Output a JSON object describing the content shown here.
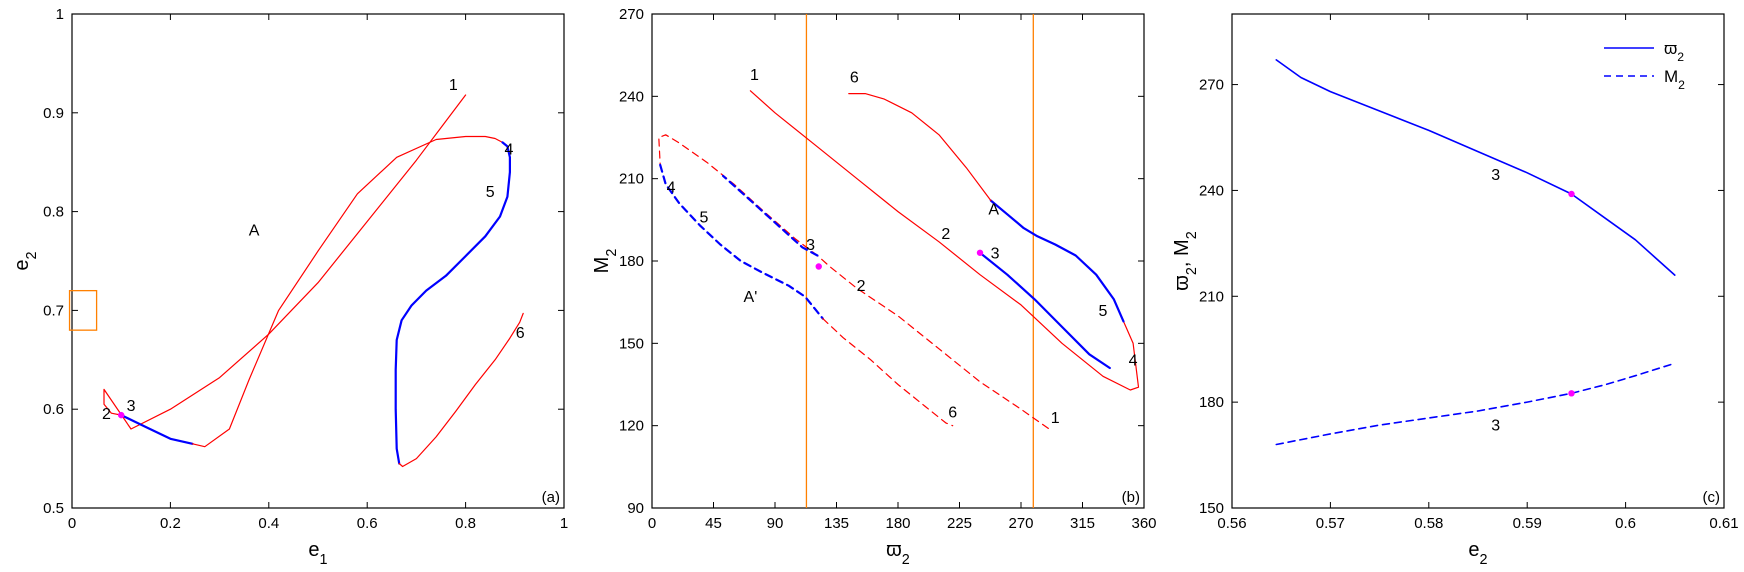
{
  "colors": {
    "red": "#ff0000",
    "blue": "#0000ff",
    "magenta": "#ff00ff",
    "orange": "#ff8000",
    "axis": "#000000"
  },
  "chart_data": [
    {
      "type": "line",
      "panel": "(a)",
      "xlabel": "e1",
      "ylabel": "e2",
      "xlim": [
        0,
        1
      ],
      "ylim": [
        0.5,
        1
      ],
      "xticks": [
        "0",
        "0.2",
        "0.4",
        "0.6",
        "0.8",
        "1"
      ],
      "xtick_values": [
        0,
        0.2,
        0.4,
        0.6,
        0.8,
        1
      ],
      "yticks": [
        "0.5",
        "0.6",
        "0.7",
        "0.8",
        "0.9",
        "1"
      ],
      "ytick_values": [
        0.5,
        0.6,
        0.7,
        0.8,
        0.9,
        1
      ],
      "series": [
        {
          "color": "red",
          "style": "solid",
          "width": 1.2,
          "points": [
            [
              0.8,
              0.918
            ],
            [
              0.7,
              0.852
            ],
            [
              0.6,
              0.79
            ],
            [
              0.5,
              0.728
            ],
            [
              0.4,
              0.676
            ],
            [
              0.3,
              0.632
            ],
            [
              0.2,
              0.6
            ],
            [
              0.12,
              0.58
            ],
            [
              0.065,
              0.62
            ],
            [
              0.065,
              0.605
            ],
            [
              0.08,
              0.596
            ],
            [
              0.1,
              0.594
            ]
          ]
        },
        {
          "color": "blue",
          "style": "solid",
          "width": 2.2,
          "points": [
            [
              0.1,
              0.594
            ],
            [
              0.15,
              0.582
            ],
            [
              0.2,
              0.57
            ],
            [
              0.245,
              0.565
            ]
          ]
        },
        {
          "color": "red",
          "style": "solid",
          "width": 1.2,
          "points": [
            [
              0.245,
              0.565
            ],
            [
              0.27,
              0.562
            ],
            [
              0.32,
              0.58
            ],
            [
              0.36,
              0.63
            ],
            [
              0.42,
              0.7
            ],
            [
              0.5,
              0.76
            ],
            [
              0.58,
              0.818
            ],
            [
              0.66,
              0.855
            ],
            [
              0.74,
              0.873
            ],
            [
              0.8,
              0.876
            ],
            [
              0.84,
              0.876
            ],
            [
              0.86,
              0.874
            ],
            [
              0.875,
              0.87
            ]
          ]
        },
        {
          "color": "blue",
          "style": "solid",
          "width": 2.2,
          "points": [
            [
              0.875,
              0.87
            ],
            [
              0.885,
              0.866
            ],
            [
              0.89,
              0.855
            ],
            [
              0.89,
              0.84
            ],
            [
              0.885,
              0.815
            ],
            [
              0.87,
              0.795
            ],
            [
              0.84,
              0.775
            ],
            [
              0.8,
              0.755
            ],
            [
              0.76,
              0.735
            ],
            [
              0.72,
              0.72
            ],
            [
              0.69,
              0.705
            ],
            [
              0.67,
              0.69
            ],
            [
              0.66,
              0.67
            ],
            [
              0.658,
              0.64
            ],
            [
              0.658,
              0.6
            ],
            [
              0.66,
              0.56
            ],
            [
              0.665,
              0.545
            ]
          ]
        },
        {
          "color": "red",
          "style": "solid",
          "width": 1.2,
          "points": [
            [
              0.665,
              0.545
            ],
            [
              0.672,
              0.542
            ],
            [
              0.7,
              0.55
            ],
            [
              0.74,
              0.572
            ],
            [
              0.78,
              0.598
            ],
            [
              0.82,
              0.625
            ],
            [
              0.86,
              0.65
            ],
            [
              0.89,
              0.672
            ],
            [
              0.91,
              0.688
            ],
            [
              0.917,
              0.697
            ]
          ]
        }
      ],
      "markers": [
        {
          "x": 0.1,
          "y": 0.594,
          "color": "magenta"
        }
      ],
      "annotations": [
        {
          "text": "1",
          "x": 0.775,
          "y": 0.923
        },
        {
          "text": "A",
          "x": 0.37,
          "y": 0.776
        },
        {
          "text": "4",
          "x": 0.888,
          "y": 0.858
        },
        {
          "text": "5",
          "x": 0.85,
          "y": 0.815
        },
        {
          "text": "6",
          "x": 0.911,
          "y": 0.672
        },
        {
          "text": "2",
          "x": 0.07,
          "y": 0.59
        },
        {
          "text": "3",
          "x": 0.12,
          "y": 0.598
        }
      ],
      "rects": [
        {
          "x0": -0.005,
          "x1": 0.05,
          "y0": 0.68,
          "y1": 0.72,
          "color": "orange"
        }
      ],
      "vlines": []
    },
    {
      "type": "line",
      "panel": "(b)",
      "xlabel": "ϖ2",
      "ylabel": "M2",
      "xlim": [
        0,
        360
      ],
      "ylim": [
        90,
        270
      ],
      "xticks": [
        "0",
        "45",
        "90",
        "135",
        "180",
        "225",
        "270",
        "315",
        "360"
      ],
      "xtick_values": [
        0,
        45,
        90,
        135,
        180,
        225,
        270,
        315,
        360
      ],
      "yticks": [
        "90",
        "120",
        "150",
        "180",
        "210",
        "240",
        "270"
      ],
      "ytick_values": [
        90,
        120,
        150,
        180,
        210,
        240,
        270
      ],
      "series": [
        {
          "color": "red",
          "style": "solid",
          "width": 1.2,
          "points": [
            [
              72,
              242
            ],
            [
              90,
              234
            ],
            [
              120,
              222
            ],
            [
              150,
              210
            ],
            [
              180,
              198
            ],
            [
              210,
              187
            ],
            [
              240,
              175
            ],
            [
              270,
              164
            ],
            [
              300,
              150
            ],
            [
              330,
              138
            ],
            [
              350,
              133
            ],
            [
              356,
              134
            ],
            [
              352,
              150
            ],
            [
              345,
              158
            ]
          ]
        },
        {
          "color": "blue",
          "style": "solid",
          "width": 2.2,
          "points": [
            [
              345,
              158
            ],
            [
              338,
              166
            ],
            [
              325,
              175
            ],
            [
              310,
              182
            ],
            [
              295,
              186
            ],
            [
              282,
              189
            ],
            [
              272,
              192
            ],
            [
              260,
              197
            ],
            [
              248,
              202
            ]
          ]
        },
        {
          "color": "red",
          "style": "solid",
          "width": 1.2,
          "points": [
            [
              248,
              202
            ],
            [
              230,
              214
            ],
            [
              210,
              226
            ],
            [
              190,
              234
            ],
            [
              170,
              239
            ],
            [
              156,
              241
            ],
            [
              144,
              241
            ]
          ]
        },
        {
          "color": "blue",
          "style": "solid",
          "width": 2.2,
          "points": [
            [
              240,
              183
            ],
            [
              260,
              175
            ],
            [
              280,
              166
            ],
            [
              300,
              156
            ],
            [
              320,
              146
            ],
            [
              335,
              141
            ]
          ]
        },
        {
          "color": "red",
          "style": "dashed",
          "width": 1.2,
          "points": [
            [
              290,
              119
            ],
            [
              270,
              126
            ],
            [
              240,
              136
            ],
            [
              210,
              148
            ],
            [
              180,
              160
            ],
            [
              150,
              170
            ],
            [
              130,
              178
            ],
            [
              121,
              182
            ],
            [
              105,
              188
            ],
            [
              82,
              198
            ],
            [
              60,
              208
            ],
            [
              40,
              216
            ],
            [
              20,
              223
            ],
            [
              10,
              226
            ],
            [
              5,
              225
            ],
            [
              6,
              215
            ]
          ]
        },
        {
          "color": "blue",
          "style": "dashed",
          "width": 2.2,
          "points": [
            [
              6,
              215
            ],
            [
              10,
              208
            ],
            [
              20,
              201
            ],
            [
              35,
              193
            ],
            [
              50,
              186
            ],
            [
              65,
              180
            ],
            [
              80,
              176
            ],
            [
              100,
              171
            ],
            [
              112,
              167
            ],
            [
              125,
              159
            ]
          ]
        },
        {
          "color": "red",
          "style": "dashed",
          "width": 1.2,
          "points": [
            [
              125,
              159
            ],
            [
              140,
              152
            ],
            [
              160,
              144
            ],
            [
              180,
              135
            ],
            [
              200,
              127
            ],
            [
              215,
              121
            ],
            [
              220,
              120
            ]
          ]
        },
        {
          "color": "blue",
          "style": "dashed",
          "width": 2.2,
          "points": [
            [
              121,
              182
            ],
            [
              110,
              185
            ],
            [
              90,
              194
            ],
            [
              70,
              203
            ],
            [
              52,
              211
            ]
          ]
        }
      ],
      "markers": [
        {
          "x": 240,
          "y": 183,
          "color": "magenta"
        },
        {
          "x": 122,
          "y": 178,
          "color": "magenta"
        }
      ],
      "annotations": [
        {
          "text": "1",
          "x": 75,
          "y": 246
        },
        {
          "text": "6",
          "x": 148,
          "y": 245
        },
        {
          "text": "A",
          "x": 250,
          "y": 197
        },
        {
          "text": "2",
          "x": 215,
          "y": 188
        },
        {
          "text": "3",
          "x": 251,
          "y": 181
        },
        {
          "text": "5",
          "x": 330,
          "y": 160
        },
        {
          "text": "4",
          "x": 352,
          "y": 142
        },
        {
          "text": "4",
          "x": 14,
          "y": 205
        },
        {
          "text": "5",
          "x": 38,
          "y": 194
        },
        {
          "text": "3",
          "x": 116,
          "y": 184
        },
        {
          "text": "2",
          "x": 153,
          "y": 169
        },
        {
          "text": "A'",
          "x": 72,
          "y": 165
        },
        {
          "text": "6",
          "x": 220,
          "y": 123
        },
        {
          "text": "1",
          "x": 295,
          "y": 121
        }
      ],
      "rects": [],
      "vlines": [
        {
          "x": 113,
          "color": "orange"
        },
        {
          "x": 279,
          "color": "orange"
        }
      ]
    },
    {
      "type": "line",
      "panel": "(c)",
      "xlabel": "e2",
      "ylabel": "ϖ2, M2",
      "xlim": [
        0.56,
        0.61
      ],
      "ylim": [
        150,
        290
      ],
      "xticks": [
        "0.56",
        "0.57",
        "0.58",
        "0.59",
        "0.6",
        "0.61"
      ],
      "xtick_values": [
        0.56,
        0.57,
        0.58,
        0.59,
        0.6,
        0.61
      ],
      "yticks": [
        "150",
        "180",
        "210",
        "240",
        "270"
      ],
      "ytick_values": [
        150,
        180,
        210,
        240,
        270
      ],
      "series": [
        {
          "name": "ϖ2",
          "color": "blue",
          "style": "solid",
          "width": 1.6,
          "points": [
            [
              0.5645,
              277
            ],
            [
              0.567,
              272
            ],
            [
              0.57,
              268
            ],
            [
              0.575,
              262.5
            ],
            [
              0.58,
              257
            ],
            [
              0.585,
              251
            ],
            [
              0.59,
              245
            ],
            [
              0.5945,
              239
            ],
            [
              0.598,
              232
            ],
            [
              0.601,
              226
            ],
            [
              0.603,
              221
            ],
            [
              0.605,
              216
            ]
          ]
        },
        {
          "name": "M2",
          "color": "blue",
          "style": "dashed",
          "width": 1.6,
          "points": [
            [
              0.5645,
              168
            ],
            [
              0.57,
              171
            ],
            [
              0.575,
              173.5
            ],
            [
              0.58,
              175.5
            ],
            [
              0.585,
              177.5
            ],
            [
              0.59,
              180
            ],
            [
              0.5945,
              182.5
            ],
            [
              0.598,
              185
            ],
            [
              0.601,
              187.5
            ],
            [
              0.605,
              191
            ]
          ]
        }
      ],
      "markers": [
        {
          "x": 0.5945,
          "y": 239,
          "color": "magenta"
        },
        {
          "x": 0.5945,
          "y": 182.5,
          "color": "magenta"
        }
      ],
      "annotations": [
        {
          "text": "3",
          "x": 0.5868,
          "y": 243
        },
        {
          "text": "3",
          "x": 0.5868,
          "y": 172
        }
      ],
      "rects": [],
      "vlines": [],
      "legend": {
        "position": "top-right",
        "entries": [
          {
            "text": "ϖ2",
            "style": "solid"
          },
          {
            "text": "M2",
            "style": "dashed"
          }
        ]
      }
    }
  ]
}
